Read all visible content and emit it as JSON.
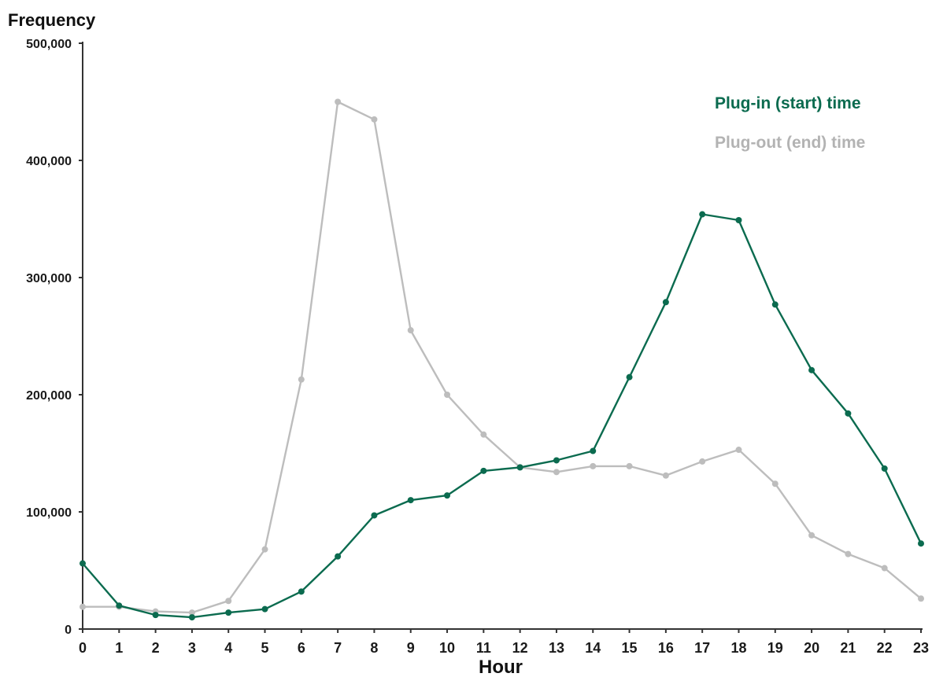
{
  "chart_data": {
    "type": "line",
    "title": "",
    "xlabel": "Hour",
    "ylabel": "Frequency",
    "x": [
      0,
      1,
      2,
      3,
      4,
      5,
      6,
      7,
      8,
      9,
      10,
      11,
      12,
      13,
      14,
      15,
      16,
      17,
      18,
      19,
      20,
      21,
      22,
      23
    ],
    "x_tick_labels": [
      "0",
      "1",
      "2",
      "3",
      "4",
      "5",
      "6",
      "7",
      "8",
      "9",
      "10",
      "11",
      "12",
      "13",
      "14",
      "15",
      "16",
      "17",
      "18",
      "19",
      "20",
      "21",
      "22",
      "23"
    ],
    "ylim": [
      0,
      500000
    ],
    "y_ticks": [
      0,
      100000,
      200000,
      300000,
      400000,
      500000
    ],
    "y_tick_labels": [
      "0",
      "100,000",
      "200,000",
      "300,000",
      "400,000",
      "500,000"
    ],
    "grid": false,
    "legend_position": "top-right",
    "series": [
      {
        "name": "Plug-in (start) time",
        "color": "#0b6b4f",
        "values": [
          56000,
          20000,
          12000,
          10000,
          14000,
          17000,
          32000,
          62000,
          97000,
          110000,
          114000,
          135000,
          138000,
          144000,
          152000,
          215000,
          279000,
          354000,
          349000,
          277000,
          221000,
          184000,
          137000,
          73000
        ]
      },
      {
        "name": "Plug-out (end) time",
        "color": "#bdbdbd",
        "values": [
          19000,
          19000,
          15000,
          14000,
          24000,
          68000,
          213000,
          450000,
          435000,
          255000,
          200000,
          166000,
          138000,
          134000,
          139000,
          139000,
          131000,
          143000,
          153000,
          124000,
          80000,
          64000,
          52000,
          26000
        ]
      }
    ]
  }
}
